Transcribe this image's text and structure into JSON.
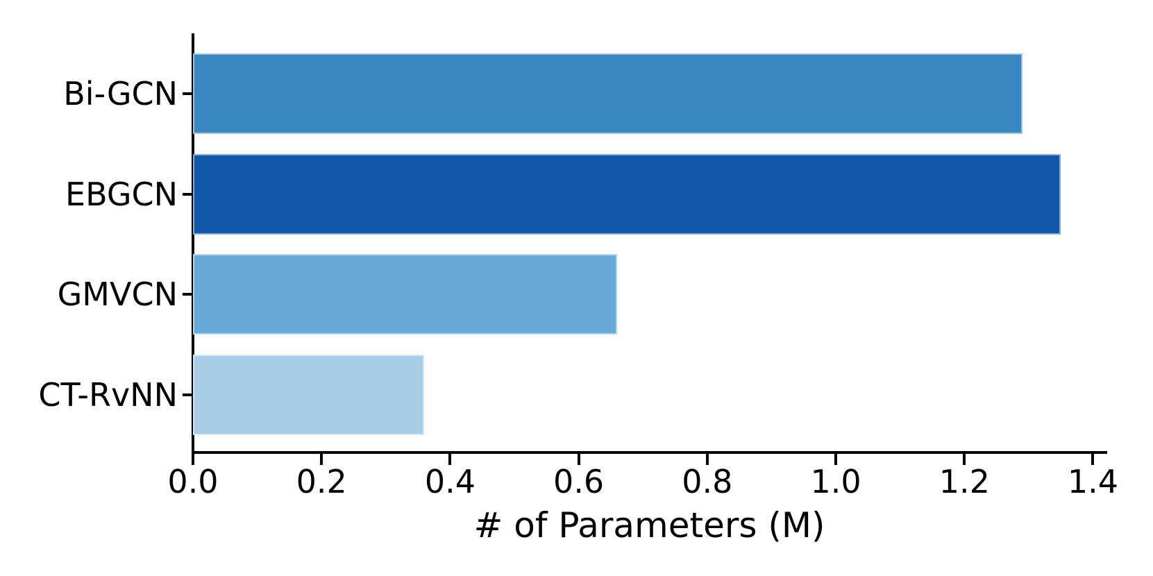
{
  "figure": {
    "background_color": "#ffffff",
    "axis_color": "#000000",
    "text_color": "#000000"
  },
  "chart_data": {
    "type": "bar",
    "orientation": "horizontal",
    "title": "",
    "xlabel": "# of Parameters (M)",
    "ylabel": "",
    "categories": [
      "Bi-GCN",
      "EBGCN",
      "GMVCN",
      "CT-RvNN"
    ],
    "values": [
      1.29,
      1.35,
      0.66,
      0.36
    ],
    "bar_colors": [
      "#3a86c0",
      "#1159a6",
      "#68aad5",
      "#a9cde4"
    ],
    "bar_edge_color": "rgba(255,255,255,0.5)",
    "x_ticks": [
      0.0,
      0.2,
      0.4,
      0.6,
      0.8,
      1.0,
      1.2,
      1.4
    ],
    "x_tick_labels": [
      "0.0",
      "0.2",
      "0.4",
      "0.6",
      "0.8",
      "1.0",
      "1.2",
      "1.4"
    ],
    "xlim": [
      0,
      1.42
    ],
    "grid": false,
    "legend": null
  }
}
